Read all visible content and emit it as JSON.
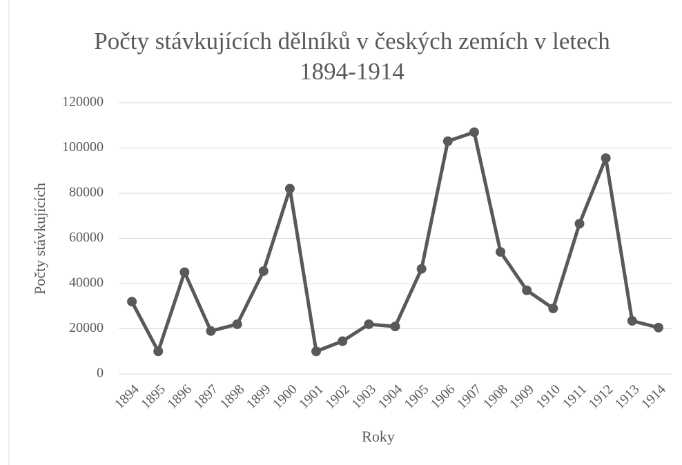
{
  "chart_data": {
    "type": "line",
    "title": "Počty stávkujících dělníků v českých zemích v letech 1894-1914",
    "x_label": "Roky",
    "y_label": "Počty stávkujících",
    "categories": [
      "1894",
      "1895",
      "1896",
      "1897",
      "1898",
      "1899",
      "1900",
      "1901",
      "1902",
      "1903",
      "1904",
      "1905",
      "1906",
      "1907",
      "1908",
      "1909",
      "1910",
      "1911",
      "1912",
      "1913",
      "1914"
    ],
    "series": [
      {
        "name": "Počty stávkujících",
        "color": "#595959",
        "values": [
          32000,
          10000,
          45000,
          19000,
          22000,
          45500,
          82000,
          10000,
          14500,
          22000,
          21000,
          46500,
          103000,
          107000,
          54000,
          37000,
          29000,
          66500,
          95500,
          23500,
          20500
        ]
      }
    ],
    "ylim": [
      0,
      120000
    ],
    "yticks": [
      0,
      20000,
      40000,
      60000,
      80000,
      100000,
      120000
    ],
    "grid": true
  }
}
